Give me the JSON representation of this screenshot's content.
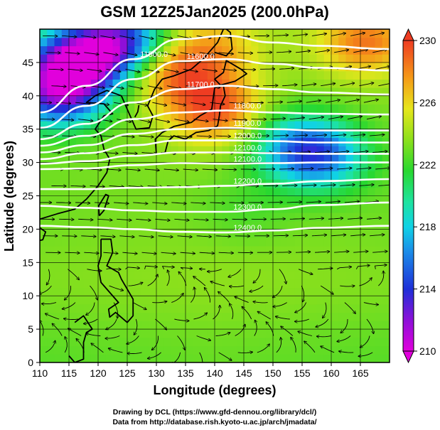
{
  "chart_data": {
    "type": "heatmap",
    "title": "GSM 12Z25Jan2025 (200.0hPa)",
    "xlabel": "Longitude (degrees)",
    "ylabel": "Latitude  (degrees)",
    "xlim": [
      110,
      170
    ],
    "ylim": [
      0,
      50
    ],
    "x_ticks": [
      "110",
      "115",
      "120",
      "125",
      "130",
      "135",
      "140",
      "145",
      "150",
      "155",
      "160",
      "165"
    ],
    "y_ticks": [
      "0",
      "5",
      "10",
      "15",
      "20",
      "25",
      "30",
      "35",
      "40",
      "45"
    ],
    "grid": true,
    "colorbar": {
      "range": [
        210,
        230
      ],
      "ticks": [
        "210",
        "214",
        "218",
        "222",
        "226",
        "230"
      ],
      "placement": "right"
    },
    "shading_anomalies": [
      {
        "lon": 116,
        "lat": 45,
        "value": 211
      },
      {
        "lon": 113,
        "lat": 40,
        "value": 214
      },
      {
        "lon": 124,
        "lat": 48,
        "value": 213
      },
      {
        "lon": 140,
        "lat": 38,
        "value": 229
      },
      {
        "lon": 132,
        "lat": 44,
        "value": 228
      },
      {
        "lon": 140,
        "lat": 47,
        "value": 226
      },
      {
        "lon": 158,
        "lat": 31,
        "value": 216
      },
      {
        "lon": 153,
        "lat": 33,
        "value": 219
      },
      {
        "lon": 166,
        "lat": 48,
        "value": 228
      },
      {
        "lon": 145,
        "lat": 23,
        "value": 222
      }
    ],
    "contours": [
      {
        "label": "11500.0",
        "lats": [
          37.5,
          41.5,
          45.5,
          48.5,
          49,
          48,
          47.5,
          47
        ]
      },
      {
        "label": "11600.0",
        "lats": [
          35.2,
          38.5,
          42.5,
          45.2,
          45.5,
          44.8,
          44.2,
          43.8
        ]
      },
      {
        "label": "11700.0",
        "lats": [
          33.5,
          35.8,
          39,
          41,
          41.5,
          41,
          40.5,
          40.2
        ]
      },
      {
        "label": "11800.0",
        "lats": [
          32.5,
          34,
          36.5,
          37.5,
          37.8,
          37.5,
          37.3,
          37.2
        ]
      },
      {
        "label": "11900.0",
        "lats": [
          31.5,
          32.6,
          34.3,
          35,
          35.2,
          35,
          34.8,
          34.8
        ]
      },
      {
        "label": "12000.0",
        "lats": [
          30.5,
          31.4,
          32.6,
          33.3,
          33.3,
          33.2,
          33,
          33
        ]
      },
      {
        "label": "12100.0",
        "lats": [
          29.8,
          30.2,
          31,
          31.5,
          31.5,
          31.4,
          31.3,
          31.3
        ]
      },
      {
        "label": "12100.0",
        "lats": [
          29,
          29.1,
          29.6,
          29.9,
          29.8,
          29.9,
          30,
          30
        ]
      },
      {
        "label": "12200.0",
        "lats": [
          26,
          26,
          26.2,
          26.3,
          26.5,
          26.8,
          27.2,
          27.5
        ]
      },
      {
        "label": "12300.0",
        "lats": [
          23.5,
          23.2,
          22.8,
          22.6,
          22.6,
          23,
          23.6,
          24
        ]
      },
      {
        "label": "12400.0",
        "lats": [
          20.5,
          20.3,
          20,
          19.6,
          19.5,
          19.8,
          20.2,
          20.5
        ]
      }
    ],
    "contour_lons": [
      110,
      118,
      126,
      134,
      142,
      150,
      158,
      170
    ]
  },
  "credits": {
    "line1": "Drawing by DCL (https://www.gfd-dennou.org/library/dcl/)",
    "line2": "Data from http://database.rish.kyoto-u.ac.jp/arch/jmadata/"
  }
}
